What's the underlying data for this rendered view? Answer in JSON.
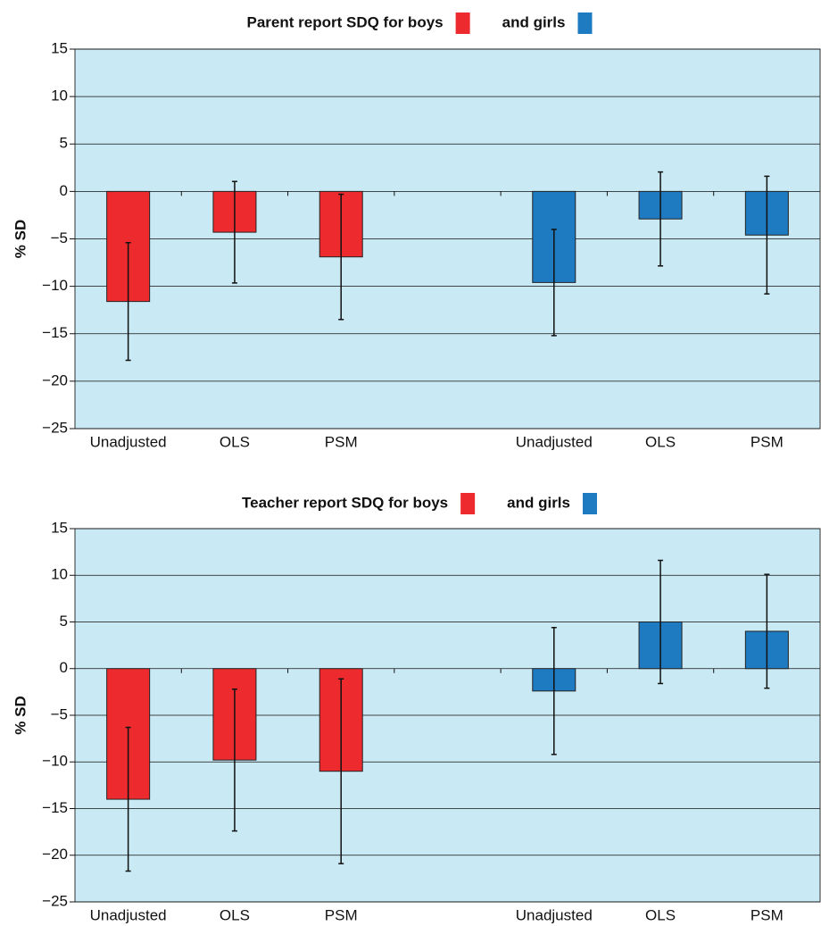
{
  "chart_data": [
    {
      "type": "bar",
      "title": "Parent report SDQ for boys",
      "y_label": "% SD",
      "categories": [
        "Unadjusted",
        "OLS",
        "PSM",
        null,
        "Unadjusted",
        "OLS",
        "PSM"
      ],
      "series": [
        {
          "color": "#ed2a2e",
          "values": [
            -11.6,
            -4.3,
            -6.9,
            null,
            null,
            null,
            null
          ],
          "errors": [
            6.2,
            5.35,
            6.6,
            null,
            null,
            null,
            null
          ]
        },
        {
          "name": "and girls",
          "color": "#1f7bc1",
          "values": [
            null,
            null,
            null,
            null,
            -9.6,
            -2.9,
            -4.6
          ],
          "errors": [
            null,
            null,
            null,
            null,
            5.6,
            4.95,
            6.2
          ]
        }
      ],
      "ylim": [
        -25,
        15
      ],
      "yticks": [
        {
          "value": -25,
          "label": "−25"
        },
        {
          "value": -20,
          "label": "−20"
        },
        {
          "value": -15,
          "label": "−15"
        },
        {
          "value": -10,
          "label": "−10"
        },
        {
          "value": -5,
          "label": "−5"
        },
        0,
        5,
        10,
        15
      ],
      "grid": true
    },
    {
      "type": "bar",
      "title": "Teacher report SDQ for boys",
      "y_label": "% SD",
      "categories": [
        "Unadjusted",
        "OLS",
        "PSM",
        null,
        "Unadjusted",
        "OLS",
        "PSM"
      ],
      "series": [
        {
          "color": "#ed2a2e",
          "values": [
            -14.0,
            -9.8,
            -11.0,
            null,
            null,
            null,
            null
          ],
          "errors": [
            7.7,
            7.6,
            9.9,
            null,
            null,
            null,
            null
          ]
        },
        {
          "name": "and girls",
          "color": "#1f7bc1",
          "values": [
            null,
            null,
            null,
            null,
            -2.4,
            5.0,
            4.0
          ],
          "errors": [
            null,
            null,
            null,
            null,
            6.8,
            6.6,
            6.1
          ]
        }
      ],
      "ylim": [
        -25,
        15
      ],
      "yticks": [
        {
          "value": -25,
          "label": "−25"
        },
        {
          "value": -20,
          "label": "−20"
        },
        {
          "value": -15,
          "label": "−15"
        },
        {
          "value": -10,
          "label": "−10"
        },
        {
          "value": -5,
          "label": "−5"
        },
        0,
        5,
        10,
        15
      ],
      "grid": true
    }
  ]
}
